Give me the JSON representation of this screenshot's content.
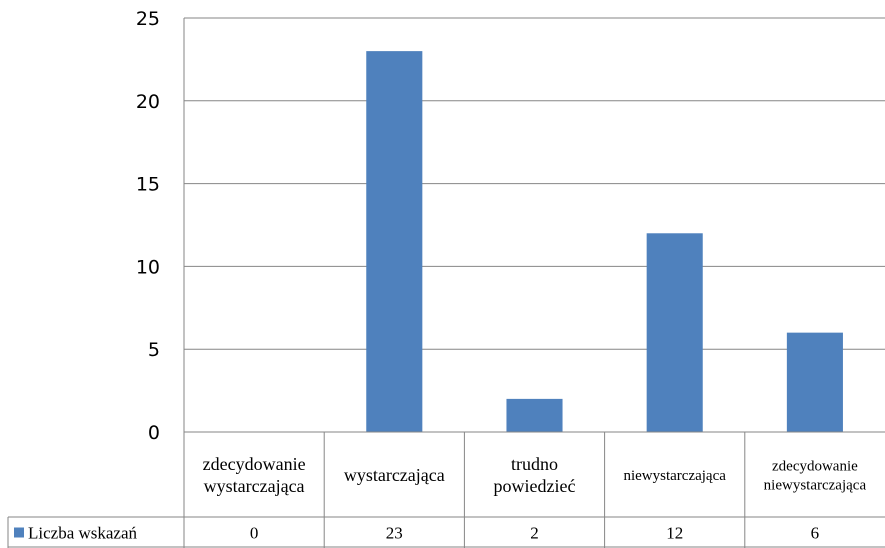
{
  "chart_data": {
    "type": "bar",
    "categories": [
      [
        "zdecydowanie",
        "wystarczająca"
      ],
      [
        "wystarczająca"
      ],
      [
        "trudno",
        "powiedzieć"
      ],
      [
        "niewystarczająca"
      ],
      [
        "zdecydowanie",
        "niewystarczająca"
      ]
    ],
    "series": [
      {
        "name": "Liczba wskazań",
        "values": [
          0,
          23,
          2,
          12,
          6
        ],
        "color": "#4f81bd"
      }
    ],
    "ylim": [
      0,
      25
    ],
    "yticks": [
      "0",
      "5",
      "10",
      "15",
      "20",
      "25"
    ],
    "grid": true,
    "legend": "data-table-row",
    "colors": {
      "bar": "#4f81bd",
      "grid": "#868686",
      "axis": "#868686"
    }
  }
}
